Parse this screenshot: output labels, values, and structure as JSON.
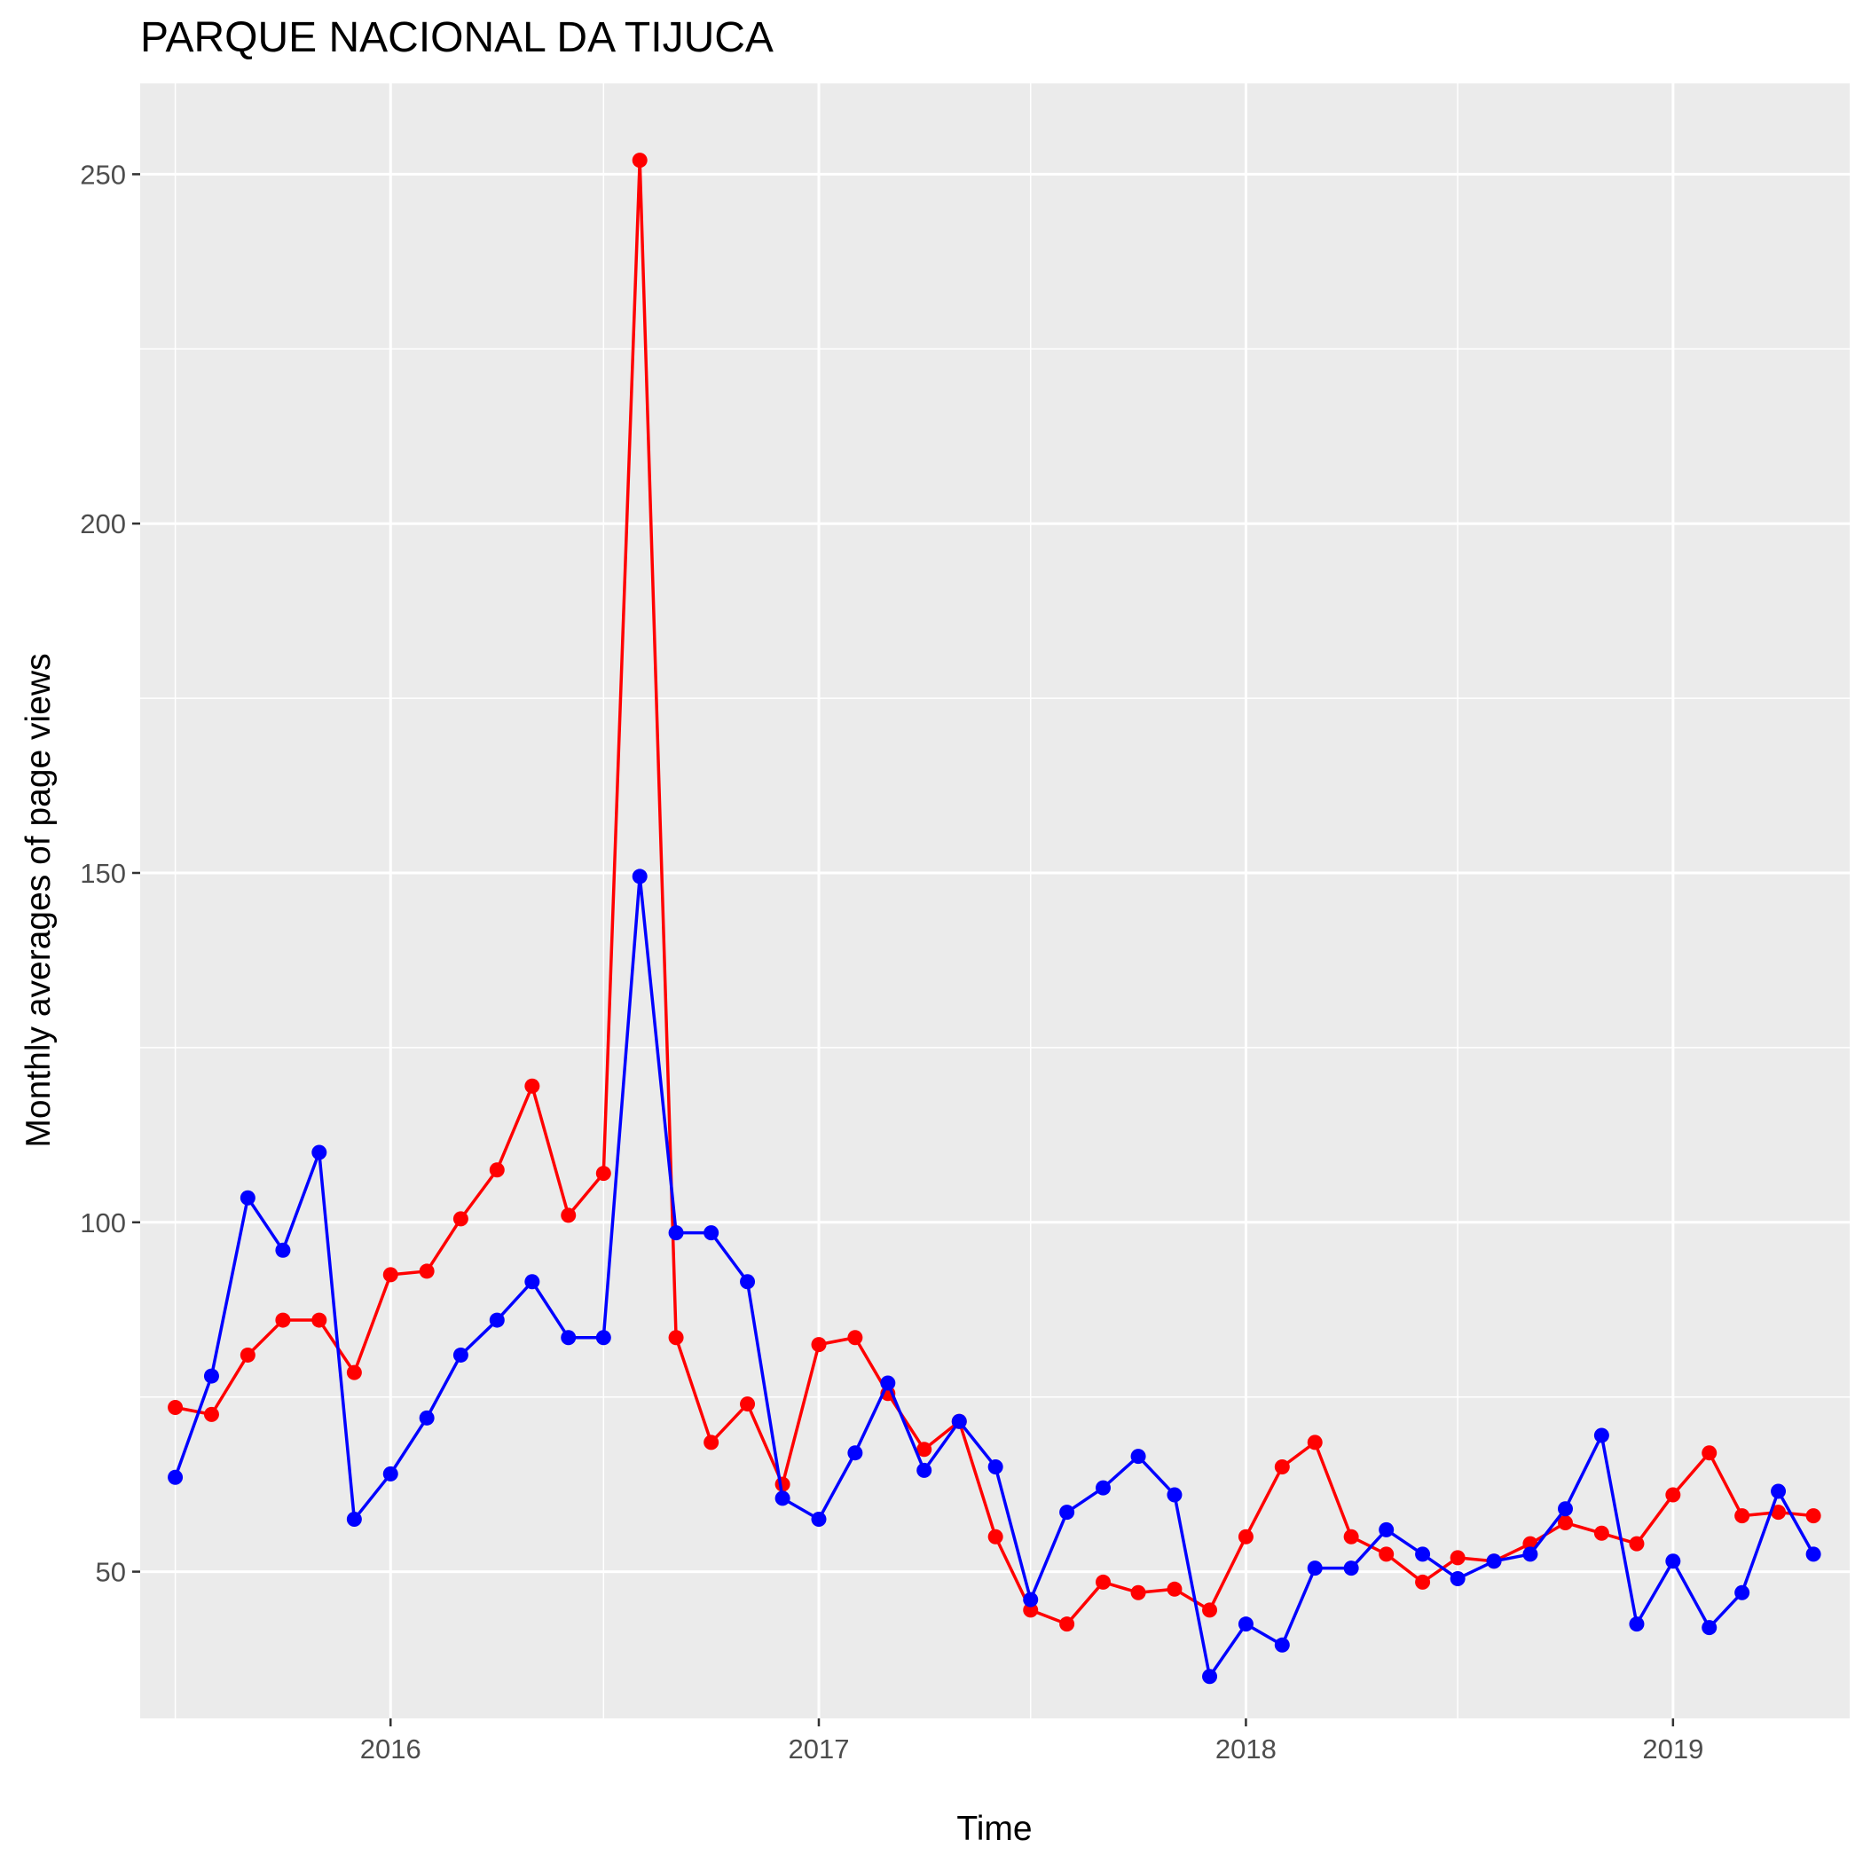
{
  "chart_data": {
    "type": "line",
    "title": "PARQUE NACIONAL DA TIJUCA",
    "xlabel": "Time",
    "ylabel": "Monthly averages of page views",
    "x_ticks": [
      "2016",
      "2017",
      "2018",
      "2019"
    ],
    "y_ticks": [
      "50",
      "100",
      "150",
      "200",
      "250"
    ],
    "xlim": [
      "2015-06-01",
      "2019-06-01"
    ],
    "ylim": [
      29,
      263
    ],
    "grid": true,
    "background": "#ebebeb",
    "x": [
      "2015-07",
      "2015-08",
      "2015-09",
      "2015-10",
      "2015-11",
      "2015-12",
      "2016-01",
      "2016-02",
      "2016-03",
      "2016-04",
      "2016-05",
      "2016-06",
      "2016-07",
      "2016-08",
      "2016-09",
      "2016-10",
      "2016-11",
      "2016-12",
      "2017-01",
      "2017-02",
      "2017-03",
      "2017-04",
      "2017-05",
      "2017-06",
      "2017-07",
      "2017-08",
      "2017-09",
      "2017-10",
      "2017-11",
      "2017-12",
      "2018-01",
      "2018-02",
      "2018-03",
      "2018-04",
      "2018-05",
      "2018-06",
      "2018-07",
      "2018-08",
      "2018-09",
      "2018-10",
      "2018-11",
      "2018-12",
      "2019-01",
      "2019-02",
      "2019-03",
      "2019-04",
      "2019-05"
    ],
    "series": [
      {
        "color": "#ff0000",
        "values": [
          73.5,
          72.5,
          81,
          86,
          86,
          78.5,
          92.5,
          93,
          100.5,
          107.5,
          119.5,
          101,
          107,
          252,
          83.5,
          68.5,
          74,
          62.5,
          82.5,
          83.5,
          75.5,
          67.5,
          71.5,
          55,
          44.5,
          42.5,
          48.5,
          47,
          47.5,
          44.5,
          55,
          65,
          68.5,
          55,
          52.5,
          48.5,
          52,
          51.5,
          54,
          57,
          55.5,
          54,
          61,
          67,
          58,
          58.5,
          58
        ]
      },
      {
        "color": "#0000ff",
        "values": [
          63.5,
          78,
          103.5,
          96,
          110,
          57.5,
          64,
          72,
          81,
          86,
          91.5,
          83.5,
          83.5,
          149.5,
          98.5,
          98.5,
          91.5,
          60.5,
          57.5,
          67,
          77,
          64.5,
          71.5,
          65,
          46,
          58.5,
          62,
          66.5,
          61,
          35,
          42.5,
          39.5,
          50.5,
          50.5,
          56,
          52.5,
          49,
          51.5,
          52.5,
          59,
          69.5,
          42.5,
          51.5,
          42,
          47,
          61.5,
          52.5
        ]
      }
    ]
  }
}
